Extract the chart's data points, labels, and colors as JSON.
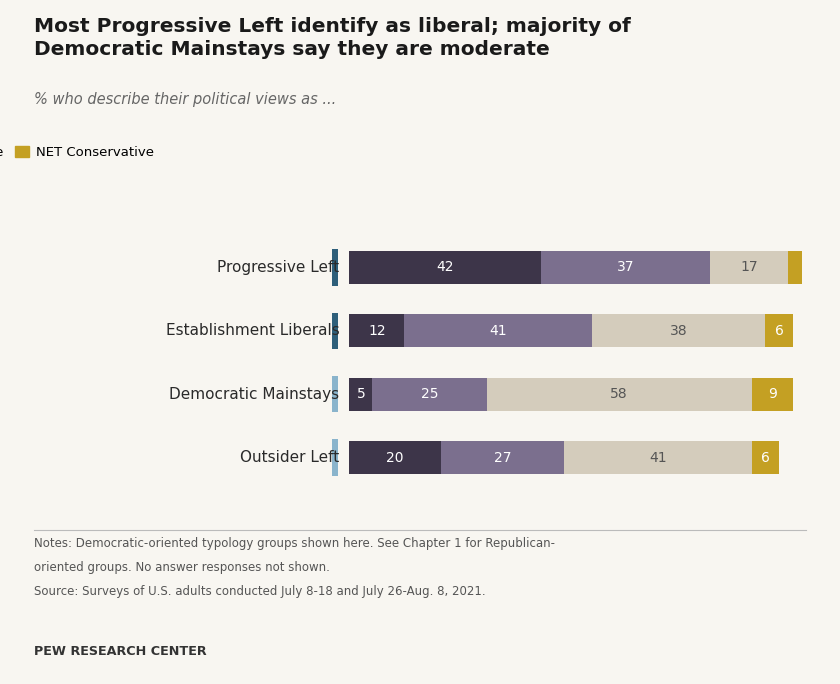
{
  "title": "Most Progressive Left identify as liberal; majority of\nDemocratic Mainstays say they are moderate",
  "subtitle": "% who describe their political views as ...",
  "categories": [
    "Progressive Left",
    "Establishment Liberals",
    "Democratic Mainstays",
    "Outsider Left"
  ],
  "series": {
    "Very liberal": [
      42,
      12,
      5,
      20
    ],
    "Liberal": [
      37,
      41,
      25,
      27
    ],
    "Moderate": [
      17,
      38,
      58,
      41
    ],
    "NET Conservative": [
      3,
      6,
      9,
      6
    ]
  },
  "colors": {
    "Very liberal": "#3d3549",
    "Liberal": "#7b6f8e",
    "Moderate": "#d4ccbc",
    "NET Conservative": "#c4a023"
  },
  "side_bar_colors": [
    "#2e5f7a",
    "#2e5f7a",
    "#8ab4cc",
    "#8ab4cc"
  ],
  "notes_line1": "Notes: Democratic-oriented typology groups shown here. See Chapter 1 for Republican-",
  "notes_line2": "oriented groups. No answer responses not shown.",
  "notes_line3": "Source: Surveys of U.S. adults conducted July 8-18 and July 26-Aug. 8, 2021.",
  "source_label": "PEW RESEARCH CENTER",
  "bar_height": 0.52,
  "figsize": [
    8.4,
    6.84
  ],
  "dpi": 100,
  "background_color": "#f8f6f1",
  "text_color": "#2a2a2a",
  "title_fontsize": 14.5,
  "subtitle_fontsize": 10.5,
  "label_fontsize": 10,
  "notes_fontsize": 8.5
}
